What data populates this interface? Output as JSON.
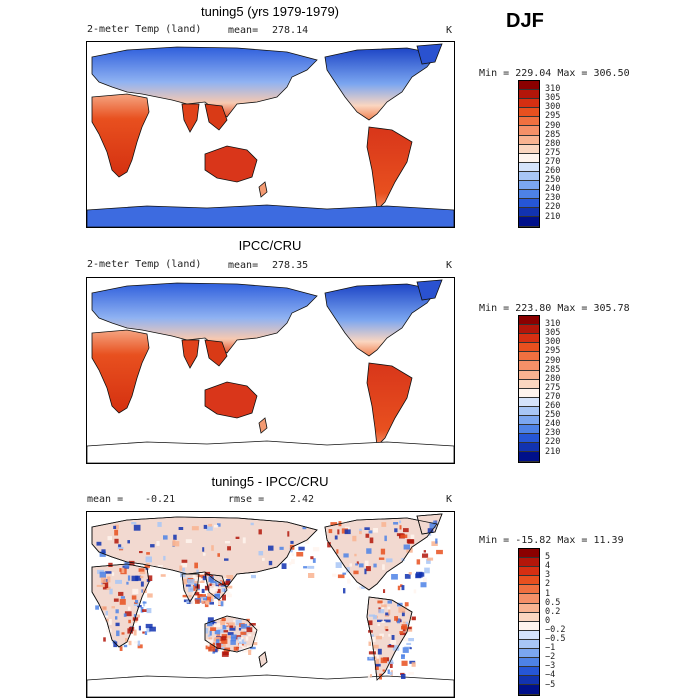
{
  "season": "DJF",
  "panels": [
    {
      "id": "model",
      "title": "tuning5 (yrs 1979-1979)",
      "variable": "2-meter Temp (land)",
      "stat1_label": "mean=",
      "stat1_value": "278.14",
      "stat2_label": "",
      "stat2_value": "",
      "units": "K",
      "min_label": "Min =",
      "min_value": "229.04",
      "max_label": "Max =",
      "max_value": "306.50"
    },
    {
      "id": "obs",
      "title": "IPCC/CRU",
      "variable": "2-meter Temp (land)",
      "stat1_label": "mean=",
      "stat1_value": "278.35",
      "stat2_label": "",
      "stat2_value": "",
      "units": "K",
      "min_label": "Min =",
      "min_value": "223.80",
      "max_label": "Max =",
      "max_value": "305.78"
    },
    {
      "id": "diff",
      "title": "tuning5 - IPCC/CRU",
      "variable": "",
      "stat1_label": "mean =",
      "stat1_value": "-0.21",
      "stat2_label": "rmse =",
      "stat2_value": "2.42",
      "units": "K",
      "min_label": "Min =",
      "min_value": "-15.82",
      "max_label": "Max =",
      "max_value": "11.39"
    }
  ],
  "chart_data": [
    {
      "type": "heatmap",
      "title": "tuning5 (yrs 1979-1979)",
      "variable": "2-meter Temp (land)",
      "units": "K",
      "mean": 278.14,
      "min": 229.04,
      "max": 306.5,
      "colorbar_levels": [
        "310",
        "305",
        "300",
        "295",
        "290",
        "285",
        "280",
        "275",
        "270",
        "260",
        "250",
        "240",
        "230",
        "220",
        "210"
      ],
      "colorbar_colors": [
        "#8b0000",
        "#b3160a",
        "#d62f12",
        "#e8501f",
        "#f07040",
        "#f59068",
        "#f9b391",
        "#fbd6c0",
        "#fff4ee",
        "#d5e3fb",
        "#a8c6f6",
        "#7ba6f0",
        "#4e82e6",
        "#2656d6",
        "#1233b0",
        "#00108a"
      ]
    },
    {
      "type": "heatmap",
      "title": "IPCC/CRU",
      "variable": "2-meter Temp (land)",
      "units": "K",
      "mean": 278.35,
      "min": 223.8,
      "max": 305.78,
      "colorbar_levels": [
        "310",
        "305",
        "300",
        "295",
        "290",
        "285",
        "280",
        "275",
        "270",
        "260",
        "250",
        "240",
        "230",
        "220",
        "210"
      ],
      "colorbar_colors": [
        "#8b0000",
        "#b3160a",
        "#d62f12",
        "#e8501f",
        "#f07040",
        "#f59068",
        "#f9b391",
        "#fbd6c0",
        "#fff4ee",
        "#d5e3fb",
        "#a8c6f6",
        "#7ba6f0",
        "#4e82e6",
        "#2656d6",
        "#1233b0",
        "#00108a"
      ]
    },
    {
      "type": "heatmap",
      "title": "tuning5 - IPCC/CRU",
      "units": "K",
      "mean": -0.21,
      "rmse": 2.42,
      "min": -15.82,
      "max": 11.39,
      "colorbar_levels": [
        "5",
        "4",
        "3",
        "2",
        "1",
        "0.5",
        "0.2",
        "0",
        "−0.2",
        "−0.5",
        "−1",
        "−2",
        "−3",
        "−4",
        "−5"
      ],
      "colorbar_colors": [
        "#8b0000",
        "#b3160a",
        "#d62f12",
        "#e8501f",
        "#f07040",
        "#f59068",
        "#f9b391",
        "#fbd6c0",
        "#fff4ee",
        "#d5e3fb",
        "#a8c6f6",
        "#7ba6f0",
        "#4e82e6",
        "#2656d6",
        "#1233b0",
        "#00108a"
      ]
    }
  ]
}
